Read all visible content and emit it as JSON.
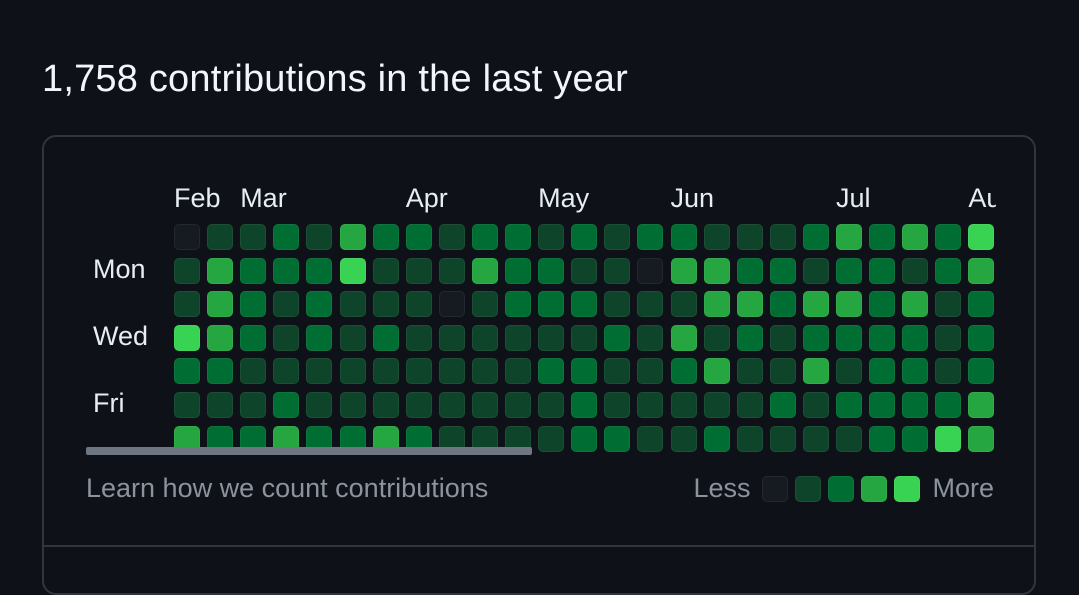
{
  "headline": "1,758 contributions in the last year",
  "months": [
    {
      "label": "Feb",
      "week": 0
    },
    {
      "label": "Mar",
      "week": 2
    },
    {
      "label": "Apr",
      "week": 7
    },
    {
      "label": "May",
      "week": 11
    },
    {
      "label": "Jun",
      "week": 15
    },
    {
      "label": "Jul",
      "week": 20
    },
    {
      "label": "Au",
      "week": 24
    }
  ],
  "day_labels": [
    {
      "label": "Mon",
      "row": 1
    },
    {
      "label": "Wed",
      "row": 3
    },
    {
      "label": "Fri",
      "row": 5
    }
  ],
  "levels": [
    "#161b22",
    "#0e4429",
    "#006d32",
    "#26a641",
    "#39d353"
  ],
  "grid": [
    [
      0,
      1,
      1,
      2,
      1,
      3,
      2,
      2,
      1,
      2,
      2,
      1,
      2,
      1,
      2,
      2,
      1,
      1,
      1,
      2,
      3,
      2,
      3,
      2,
      4
    ],
    [
      1,
      3,
      2,
      2,
      2,
      4,
      1,
      1,
      1,
      3,
      2,
      2,
      1,
      1,
      0,
      3,
      3,
      2,
      2,
      1,
      2,
      2,
      1,
      2,
      3
    ],
    [
      1,
      3,
      2,
      1,
      2,
      1,
      1,
      1,
      0,
      1,
      2,
      2,
      2,
      1,
      1,
      1,
      3,
      3,
      2,
      3,
      3,
      2,
      3,
      1,
      2
    ],
    [
      4,
      3,
      2,
      1,
      2,
      1,
      2,
      1,
      1,
      1,
      1,
      1,
      1,
      2,
      1,
      3,
      1,
      2,
      1,
      2,
      2,
      2,
      2,
      1,
      2
    ],
    [
      2,
      2,
      1,
      1,
      1,
      1,
      1,
      1,
      1,
      1,
      1,
      2,
      2,
      1,
      1,
      2,
      3,
      1,
      1,
      3,
      1,
      2,
      2,
      1,
      2
    ],
    [
      1,
      1,
      1,
      2,
      1,
      1,
      1,
      1,
      1,
      1,
      1,
      1,
      2,
      1,
      1,
      1,
      1,
      1,
      2,
      1,
      2,
      2,
      2,
      2,
      3
    ],
    [
      3,
      2,
      2,
      3,
      2,
      2,
      3,
      2,
      1,
      1,
      1,
      1,
      2,
      2,
      1,
      1,
      2,
      1,
      1,
      1,
      1,
      2,
      2,
      4,
      3
    ]
  ],
  "footer_link": "Learn how we count contributions",
  "legend": {
    "less": "Less",
    "more": "More"
  }
}
